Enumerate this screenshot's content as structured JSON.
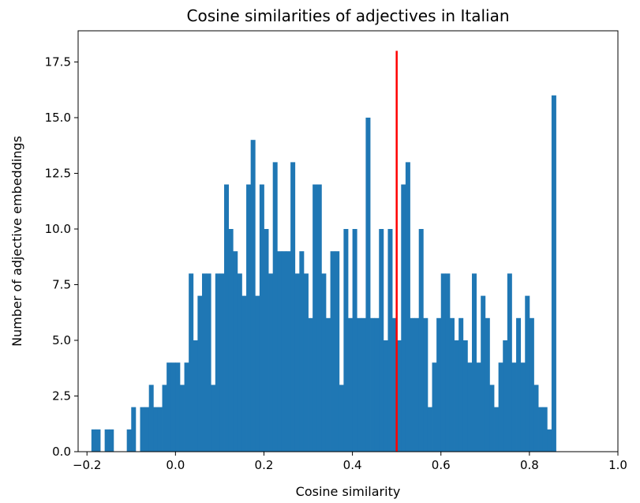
{
  "chart_data": {
    "type": "bar",
    "title": "Cosine similarities of adjectives in Italian",
    "xlabel": "Cosine similarity",
    "ylabel": "Number of adjective embeddings",
    "xlim": [
      -0.22,
      1.0
    ],
    "ylim": [
      0,
      18.9
    ],
    "x_ticks": [
      "−0.2",
      "0.0",
      "0.2",
      "0.4",
      "0.6",
      "0.8",
      "1.0"
    ],
    "x_tick_values": [
      -0.2,
      0.0,
      0.2,
      0.4,
      0.6,
      0.8,
      1.0
    ],
    "y_ticks": [
      "0.0",
      "2.5",
      "5.0",
      "7.5",
      "10.0",
      "12.5",
      "15.0",
      "17.5"
    ],
    "y_tick_values": [
      0,
      2.5,
      5,
      7.5,
      10,
      12.5,
      15,
      17.5
    ],
    "bin_start": -0.19,
    "bin_width": 0.01,
    "values": [
      1,
      1,
      0,
      1,
      1,
      0,
      0,
      0,
      1,
      2,
      0,
      2,
      2,
      3,
      2,
      2,
      3,
      4,
      4,
      4,
      3,
      4,
      8,
      5,
      7,
      8,
      8,
      3,
      8,
      8,
      12,
      10,
      9,
      8,
      7,
      12,
      14,
      7,
      12,
      10,
      8,
      13,
      9,
      9,
      9,
      13,
      8,
      9,
      8,
      6,
      12,
      12,
      8,
      6,
      9,
      9,
      3,
      10,
      6,
      10,
      6,
      6,
      15,
      6,
      6,
      10,
      5,
      10,
      6,
      5,
      12,
      13,
      6,
      6,
      10,
      6,
      2,
      4,
      6,
      8,
      8,
      6,
      5,
      6,
      5,
      4,
      8,
      4,
      7,
      6,
      3,
      2,
      4,
      5,
      8,
      4,
      6,
      4,
      7,
      6,
      3,
      2,
      2,
      1,
      16
    ],
    "bar_color": "#1f77b4",
    "reference_line": {
      "x": 0.5,
      "y_max": 18,
      "color": "#ff0000"
    },
    "grid": false
  }
}
